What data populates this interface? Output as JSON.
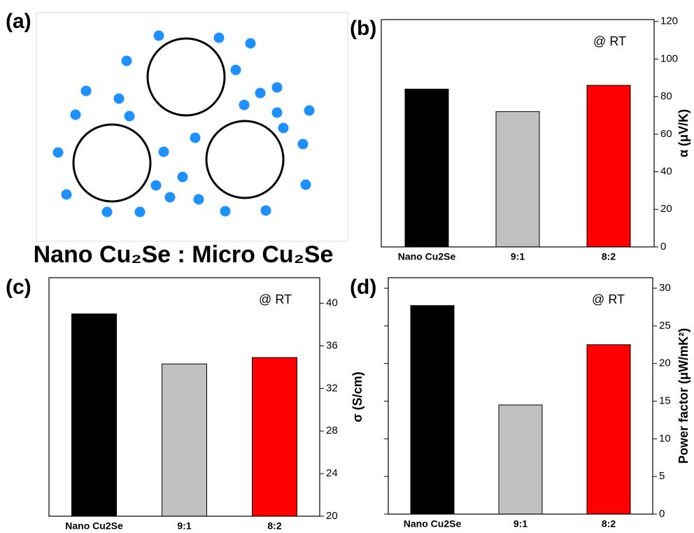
{
  "diagram": {
    "label": "(a)",
    "caption": "Nano Cu₂Se : Micro Cu₂Se"
  },
  "chart_data": [
    {
      "type": "bar",
      "label": "(b)",
      "annotation": "@ RT",
      "ylabel": "α (μV/K)",
      "categories": [
        "Nano Cu2Se",
        "9:1",
        "8:2"
      ],
      "values": [
        84,
        72,
        86
      ],
      "colors": [
        "#000000",
        "#c0c0c0",
        "#ff0000"
      ],
      "ylim": [
        0,
        121
      ],
      "yticks": [
        0,
        20,
        40,
        60,
        80,
        100,
        120
      ]
    },
    {
      "type": "bar",
      "label": "(c)",
      "annotation": "@ RT",
      "ylabel": "σ (S/cm)",
      "categories": [
        "Nano Cu2Se",
        "9:1",
        "8:2"
      ],
      "values": [
        39.0,
        34.3,
        34.9
      ],
      "colors": [
        "#000000",
        "#c0c0c0",
        "#ff0000"
      ],
      "ylim": [
        20,
        42.4
      ],
      "yticks": [
        20,
        24,
        28,
        32,
        36,
        40
      ]
    },
    {
      "type": "bar",
      "label": "(d)",
      "annotation": "@ RT",
      "ylabel": "Power factor (μW/mK²)",
      "categories": [
        "Nano Cu2Se",
        "9:1",
        "8:2"
      ],
      "values": [
        27.7,
        14.5,
        22.5
      ],
      "colors": [
        "#000000",
        "#c0c0c0",
        "#ff0000"
      ],
      "ylim": [
        0,
        31.4
      ],
      "yticks": [
        0,
        5,
        10,
        15,
        20,
        25,
        30
      ]
    }
  ]
}
